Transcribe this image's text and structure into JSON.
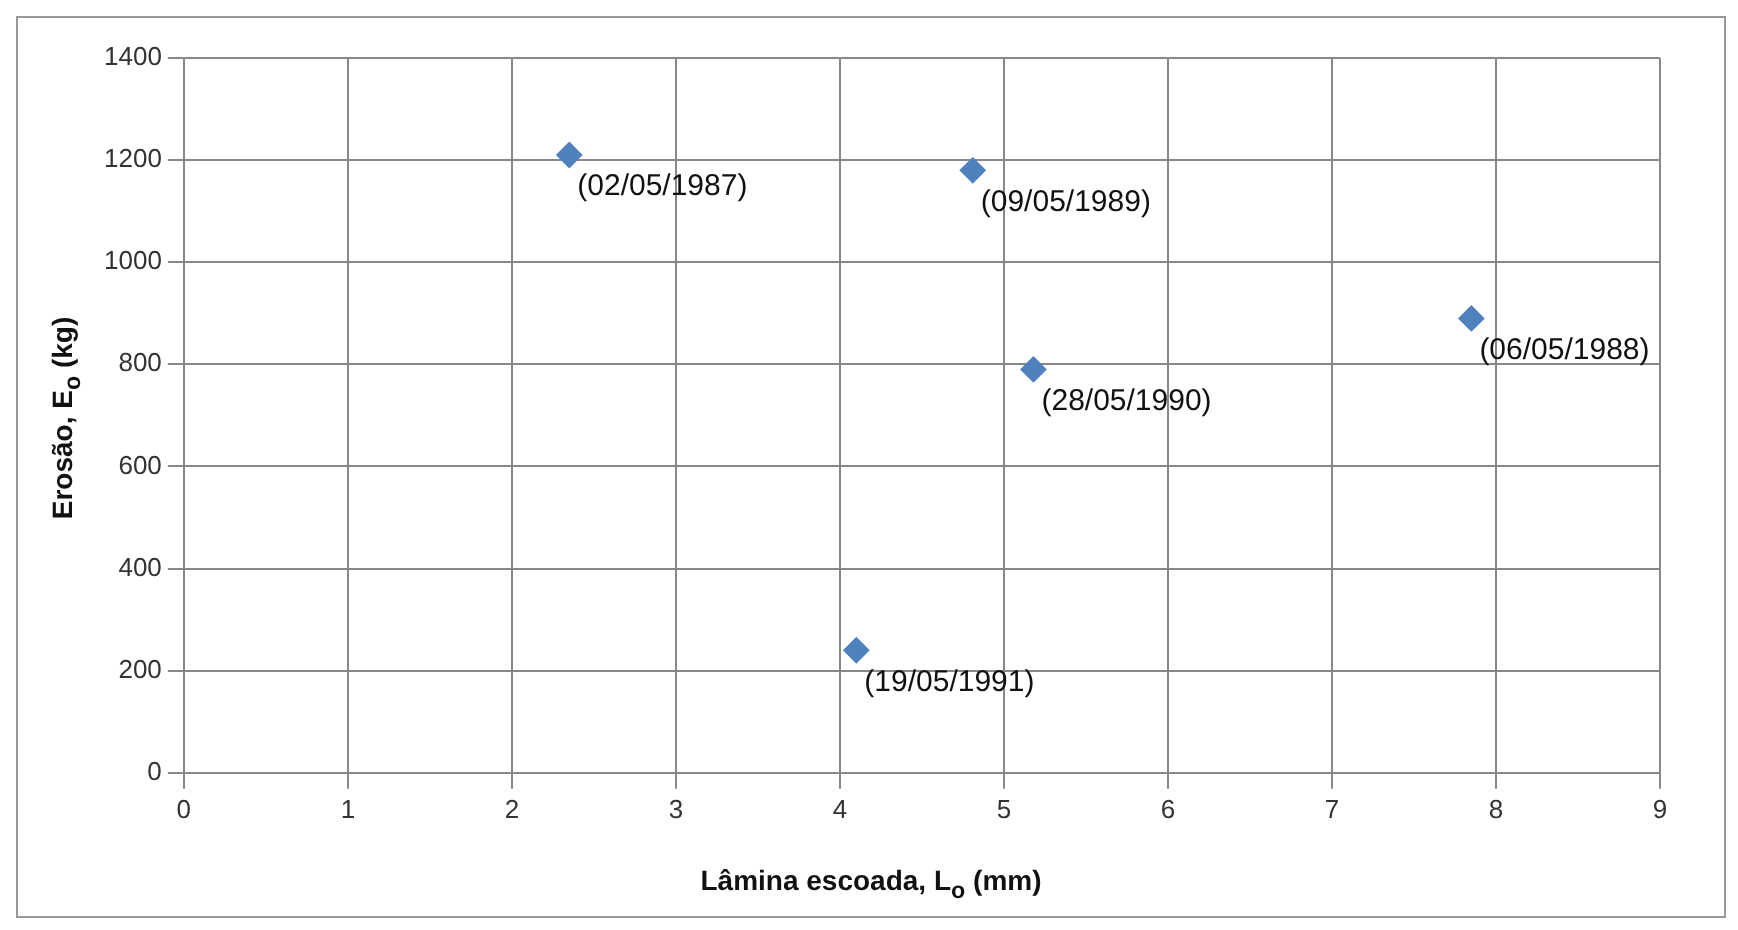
{
  "chart_data": {
    "type": "scatter",
    "xlabel": "Lâmina escoada, L$_{o}$ (mm)",
    "ylabel": "Erosão, E$_{o}$ (kg)",
    "x": [
      2.35,
      7.85,
      4.81,
      5.18,
      4.1
    ],
    "series": [
      {
        "color": "#4f81bd",
        "values": [
          1210,
          890,
          1180,
          790,
          240
        ]
      }
    ],
    "xlim": [
      0,
      9
    ],
    "xticks": [
      0,
      1,
      2,
      3,
      4,
      5,
      6,
      7,
      8,
      9
    ],
    "ylim": [
      0,
      1400
    ],
    "yticks": [
      0,
      200,
      400,
      600,
      800,
      1000,
      1200,
      1400
    ],
    "grid": true,
    "legend": false,
    "marker": "diamond",
    "annotations": [
      {
        "text": "(02/05/1987)",
        "x": 2.35,
        "y": 1210
      },
      {
        "text": "(06/05/1988)",
        "x": 7.85,
        "y": 890
      },
      {
        "text": "(09/05/1989)",
        "x": 4.81,
        "y": 1180
      },
      {
        "text": "(28/05/1990)",
        "x": 5.18,
        "y": 790
      },
      {
        "text": "(19/05/1991)",
        "x": 4.1,
        "y": 240
      }
    ]
  }
}
